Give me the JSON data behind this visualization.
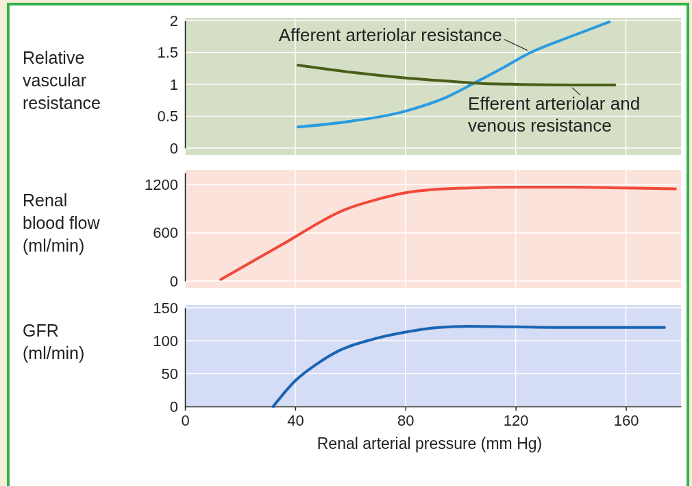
{
  "chart_data": [
    {
      "type": "line",
      "ylabel": "Relative vascular resistance",
      "xlim": [
        0,
        180
      ],
      "xticks": [
        0,
        40,
        80,
        120,
        160
      ],
      "ylim": [
        0,
        2
      ],
      "yticks": [
        0,
        0.5,
        1,
        1.5,
        2
      ],
      "grid": true,
      "tick_labels": "y",
      "legend": false,
      "series": [
        {
          "name": "Afferent arteriolar resistance",
          "color": "#2a9be0",
          "x": [
            41,
            60,
            80,
            95,
            105,
            115,
            125,
            140,
            154
          ],
          "values": [
            0.33,
            0.42,
            0.58,
            0.8,
            1.02,
            1.25,
            1.49,
            1.75,
            1.98
          ]
        },
        {
          "name": "Efferent arteriolar and venous resistance",
          "color": "#4a5e1a",
          "x": [
            41,
            60,
            80,
            95,
            105,
            120,
            140,
            156
          ],
          "values": [
            1.3,
            1.19,
            1.1,
            1.05,
            1.02,
            1.0,
            0.99,
            0.99
          ]
        }
      ]
    },
    {
      "type": "line",
      "ylabel": "Renal blood flow (ml/min)",
      "xlim": [
        0,
        180
      ],
      "xticks": [
        0,
        40,
        80,
        120,
        160
      ],
      "ylim": [
        0,
        1350
      ],
      "yticks": [
        0,
        600,
        1200
      ],
      "grid": true,
      "tick_labels": "y",
      "series": [
        {
          "color": "#f04a3a",
          "x": [
            13,
            35,
            58,
            70,
            80,
            90,
            103,
            120,
            140,
            160,
            178
          ],
          "values": [
            20,
            450,
            890,
            1020,
            1100,
            1140,
            1160,
            1170,
            1170,
            1160,
            1150
          ]
        }
      ]
    },
    {
      "type": "line",
      "ylabel": "GFR (ml/min)",
      "xlabel": "Renal arterial pressure (mm Hg)",
      "xlim": [
        0,
        180
      ],
      "xticks": [
        0,
        40,
        80,
        120,
        160
      ],
      "ylim": [
        0,
        150
      ],
      "yticks": [
        0,
        50,
        100,
        150
      ],
      "grid": true,
      "series": [
        {
          "color": "#1a64b4",
          "x": [
            32,
            40,
            48,
            56,
            68,
            80,
            92,
            103,
            120,
            140,
            160,
            174
          ],
          "values": [
            0,
            39,
            65,
            85,
            102,
            113,
            120,
            122,
            121,
            120,
            120,
            120
          ]
        }
      ]
    }
  ]
}
